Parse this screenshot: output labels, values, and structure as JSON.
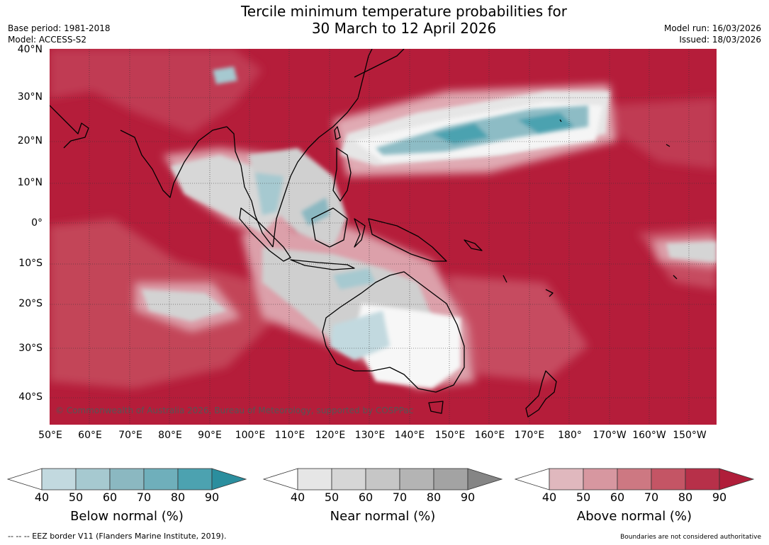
{
  "title": [
    "Tercile minimum temperature probabilities for",
    "30 March to 12 April 2026"
  ],
  "meta_left": [
    "Base period: 1981-2018",
    "Model: ACCESS-S2"
  ],
  "meta_right": [
    "Model run: 16/03/2026",
    "Issued: 18/03/2026"
  ],
  "map": {
    "lat_labels": [
      "40°N",
      "30°N",
      "20°N",
      "10°N",
      "0°",
      "10°S",
      "20°S",
      "30°S",
      "40°S"
    ],
    "lon_labels": [
      "50°E",
      "60°E",
      "70°E",
      "80°E",
      "90°E",
      "100°E",
      "110°E",
      "120°E",
      "130°E",
      "140°E",
      "150°E",
      "160°E",
      "170°E",
      "180°",
      "170°W",
      "160°W",
      "150°W"
    ],
    "credit": "© Commonwealth of Australia 2026, Bureau of Meteorology, supported by COSPPac",
    "colors": {
      "above": "#b51d3a",
      "near": "#d3d3d3",
      "below": "#57a4b3",
      "land_outline": "#000000",
      "grid": "#333333"
    }
  },
  "legends": [
    {
      "title": "Below normal (%)",
      "ticks": [
        "40",
        "50",
        "60",
        "70",
        "80",
        "90"
      ],
      "colors": [
        "#c2d9df",
        "#a6c9d0",
        "#8bb8c1",
        "#6fafbb",
        "#4ca2b0",
        "#2b8e9e"
      ]
    },
    {
      "title": "Near normal (%)",
      "ticks": [
        "40",
        "50",
        "60",
        "70",
        "80",
        "90"
      ],
      "colors": [
        "#e6e6e6",
        "#d6d6d6",
        "#c6c6c6",
        "#b4b4b4",
        "#a3a3a3",
        "#858585"
      ]
    },
    {
      "title": "Above normal (%)",
      "ticks": [
        "40",
        "50",
        "60",
        "70",
        "80",
        "90"
      ],
      "colors": [
        "#e0b8be",
        "#d797a0",
        "#cd7882",
        "#c45565",
        "#b73049",
        "#b01e3a"
      ]
    }
  ],
  "footer": {
    "left": "--  --  -- EEZ border V11 (Flanders Marine Institute, 2019).",
    "right": "Boundaries are not considered authoritative"
  }
}
